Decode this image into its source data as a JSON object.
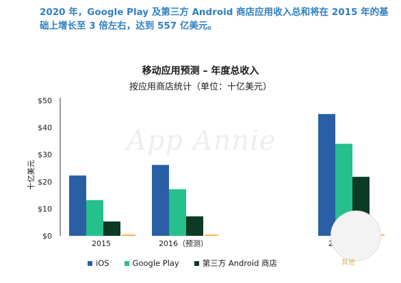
{
  "headline": "2020 年，Google Play 及第三方 Android 商店应用收入总和将在 2015 年的基础上增长至 3 倍左右，达到 557 亿美元。",
  "watermark": "App Annie",
  "badge_text": "其他",
  "colors": {
    "ios": "#2a5fa6",
    "google_play": "#25c08c",
    "third_party": "#0c3a24",
    "headline": "#2f7fc2",
    "baseline_tick": "#f5b452"
  },
  "chart_data": {
    "type": "bar",
    "title": "移动应用预测 – 年度总收入",
    "subtitle": "按应用商店统计（单位：十亿美元）",
    "ylabel": "十亿美元",
    "ylim": [
      0,
      50
    ],
    "yticks": [
      "$0",
      "$10",
      "$20",
      "$30",
      "$40",
      "$50"
    ],
    "categories": [
      "2015",
      "2016（预测）",
      "2020（预测）"
    ],
    "series": [
      {
        "name": "iOS",
        "values": [
          22.3,
          26.2,
          45.0
        ]
      },
      {
        "name": "Google Play",
        "values": [
          13.2,
          17.2,
          34.0
        ]
      },
      {
        "name": "第三方 Android 商店",
        "values": [
          5.3,
          7.2,
          21.8
        ]
      }
    ],
    "legend_position": "bottom",
    "grid": false
  }
}
